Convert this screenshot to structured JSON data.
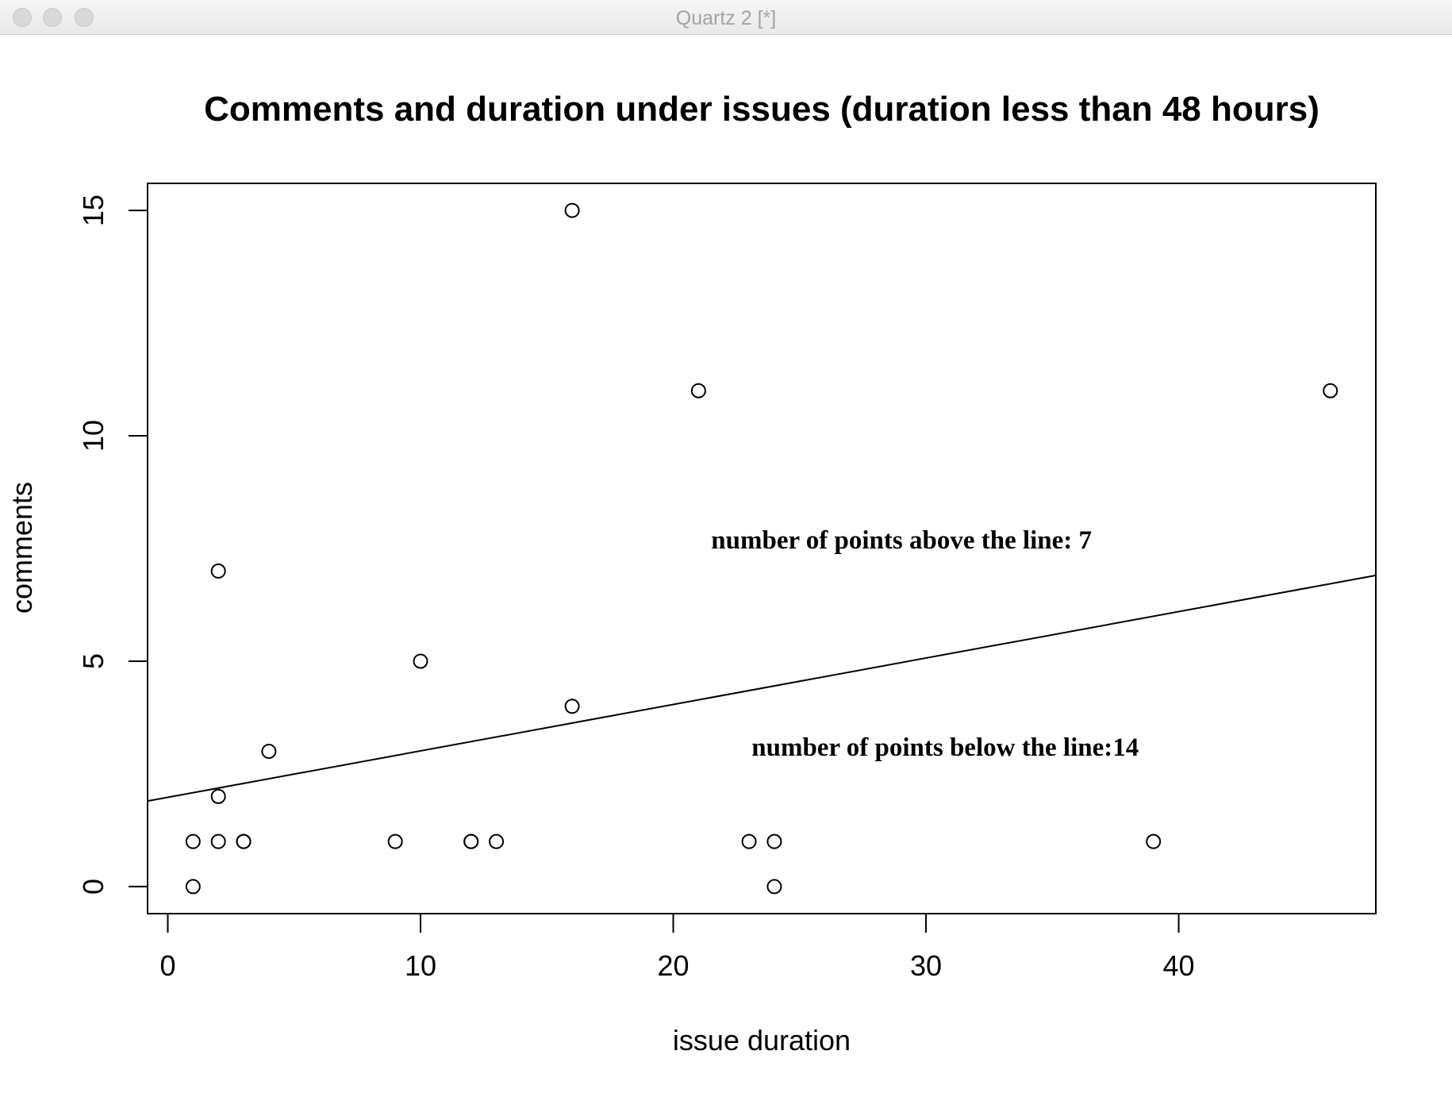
{
  "window": {
    "title": "Quartz 2 [*]"
  },
  "chart_data": {
    "type": "scatter",
    "title": "Comments and duration under issues (duration less than 48 hours)",
    "xlabel": "issue duration",
    "ylabel": "comments",
    "xlim": [
      -0.8,
      47.8
    ],
    "ylim": [
      -0.6,
      15.6
    ],
    "xticks": [
      0,
      10,
      20,
      30,
      40
    ],
    "yticks": [
      0,
      5,
      10,
      15
    ],
    "grid": false,
    "legend": "none",
    "points": [
      {
        "x": 1,
        "y": 0
      },
      {
        "x": 1,
        "y": 1
      },
      {
        "x": 2,
        "y": 1
      },
      {
        "x": 2,
        "y": 2
      },
      {
        "x": 2,
        "y": 7
      },
      {
        "x": 3,
        "y": 1
      },
      {
        "x": 3,
        "y": 1
      },
      {
        "x": 4,
        "y": 3
      },
      {
        "x": 9,
        "y": 1
      },
      {
        "x": 10,
        "y": 5
      },
      {
        "x": 12,
        "y": 1
      },
      {
        "x": 12,
        "y": 1
      },
      {
        "x": 13,
        "y": 1
      },
      {
        "x": 16,
        "y": 4
      },
      {
        "x": 16,
        "y": 15
      },
      {
        "x": 21,
        "y": 11
      },
      {
        "x": 23,
        "y": 1
      },
      {
        "x": 24,
        "y": 1
      },
      {
        "x": 24,
        "y": 0
      },
      {
        "x": 39,
        "y": 1
      },
      {
        "x": 46,
        "y": 11
      }
    ],
    "regression_line": {
      "intercept": 1.98,
      "slope": 0.103
    },
    "annotations": [
      {
        "text": "number of points above the line: 7",
        "x": 21.5,
        "y": 7.5
      },
      {
        "text": "number of points below the line:14",
        "x": 23.1,
        "y": 2.9
      }
    ]
  }
}
